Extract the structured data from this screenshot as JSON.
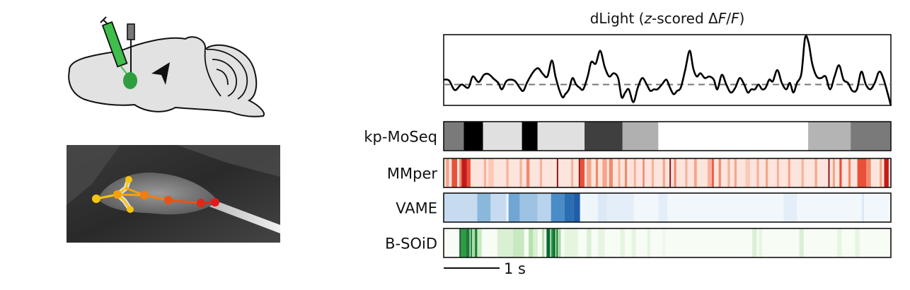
{
  "panel_title_prefix": "dLight (",
  "panel_title_z": "z",
  "panel_title_mid": "-scored Δ",
  "panel_title_F1": "F",
  "panel_title_slash": "/",
  "panel_title_F2": "F",
  "panel_title_suffix": ")",
  "scale_bar_label": "1 s",
  "tracks": [
    {
      "label": "kp-MoSeq",
      "palette": "gray",
      "segments": [
        {
          "start": 0.0,
          "end": 0.045,
          "color": "#7a7a7a"
        },
        {
          "start": 0.045,
          "end": 0.088,
          "color": "#000000"
        },
        {
          "start": 0.088,
          "end": 0.175,
          "color": "#e0e0e0"
        },
        {
          "start": 0.175,
          "end": 0.21,
          "color": "#000000"
        },
        {
          "start": 0.21,
          "end": 0.315,
          "color": "#e0e0e0"
        },
        {
          "start": 0.315,
          "end": 0.4,
          "color": "#3f3f3f"
        },
        {
          "start": 0.4,
          "end": 0.48,
          "color": "#b0b0b0"
        },
        {
          "start": 0.48,
          "end": 0.815,
          "color": "#ffffff"
        },
        {
          "start": 0.815,
          "end": 0.91,
          "color": "#b4b4b4"
        },
        {
          "start": 0.91,
          "end": 1.0,
          "color": "#7a7a7a"
        }
      ]
    },
    {
      "label": "MMper",
      "palette": "red",
      "base_color": "#fde4dc",
      "segments": [
        {
          "start": 0.005,
          "end": 0.012,
          "color": "#f4a58c"
        },
        {
          "start": 0.018,
          "end": 0.03,
          "color": "#e8503a"
        },
        {
          "start": 0.035,
          "end": 0.04,
          "color": "#f08a6c"
        },
        {
          "start": 0.04,
          "end": 0.052,
          "color": "#c41a1a"
        },
        {
          "start": 0.052,
          "end": 0.06,
          "color": "#e8503a"
        },
        {
          "start": 0.09,
          "end": 0.095,
          "color": "#f7b29c"
        },
        {
          "start": 0.1,
          "end": 0.112,
          "color": "#fbc9b6"
        },
        {
          "start": 0.14,
          "end": 0.145,
          "color": "#f7b29c"
        },
        {
          "start": 0.17,
          "end": 0.175,
          "color": "#f7b29c"
        },
        {
          "start": 0.185,
          "end": 0.192,
          "color": "#f08a6c"
        },
        {
          "start": 0.215,
          "end": 0.22,
          "color": "#f7b29c"
        },
        {
          "start": 0.253,
          "end": 0.256,
          "color": "#8b0f0f"
        },
        {
          "start": 0.285,
          "end": 0.29,
          "color": "#f7b29c"
        },
        {
          "start": 0.302,
          "end": 0.305,
          "color": "#8b0f0f"
        },
        {
          "start": 0.305,
          "end": 0.315,
          "color": "#e8503a"
        },
        {
          "start": 0.32,
          "end": 0.33,
          "color": "#f4a58c"
        },
        {
          "start": 0.34,
          "end": 0.345,
          "color": "#f08a6c"
        },
        {
          "start": 0.355,
          "end": 0.365,
          "color": "#f4a58c"
        },
        {
          "start": 0.37,
          "end": 0.378,
          "color": "#f08a6c"
        },
        {
          "start": 0.39,
          "end": 0.395,
          "color": "#f7b29c"
        },
        {
          "start": 0.405,
          "end": 0.41,
          "color": "#f08a6c"
        },
        {
          "start": 0.425,
          "end": 0.43,
          "color": "#f7b29c"
        },
        {
          "start": 0.445,
          "end": 0.449,
          "color": "#f08a6c"
        },
        {
          "start": 0.465,
          "end": 0.47,
          "color": "#f7b29c"
        },
        {
          "start": 0.49,
          "end": 0.495,
          "color": "#f4a58c"
        },
        {
          "start": 0.505,
          "end": 0.508,
          "color": "#8b0f0f"
        },
        {
          "start": 0.515,
          "end": 0.52,
          "color": "#f08a6c"
        },
        {
          "start": 0.54,
          "end": 0.545,
          "color": "#f7b29c"
        },
        {
          "start": 0.56,
          "end": 0.566,
          "color": "#f4a58c"
        },
        {
          "start": 0.59,
          "end": 0.6,
          "color": "#f7b29c"
        },
        {
          "start": 0.615,
          "end": 0.62,
          "color": "#f08a6c"
        },
        {
          "start": 0.635,
          "end": 0.64,
          "color": "#f7b29c"
        },
        {
          "start": 0.6,
          "end": 0.604,
          "color": "#e8503a"
        },
        {
          "start": 0.65,
          "end": 0.655,
          "color": "#f4a58c"
        },
        {
          "start": 0.675,
          "end": 0.685,
          "color": "#fbc9b6"
        },
        {
          "start": 0.7,
          "end": 0.705,
          "color": "#f7b29c"
        },
        {
          "start": 0.72,
          "end": 0.725,
          "color": "#f4a58c"
        },
        {
          "start": 0.745,
          "end": 0.75,
          "color": "#f7b29c"
        },
        {
          "start": 0.77,
          "end": 0.775,
          "color": "#f4a58c"
        },
        {
          "start": 0.8,
          "end": 0.805,
          "color": "#f7b29c"
        },
        {
          "start": 0.83,
          "end": 0.835,
          "color": "#f4a58c"
        },
        {
          "start": 0.86,
          "end": 0.863,
          "color": "#8b0f0f"
        },
        {
          "start": 0.87,
          "end": 0.875,
          "color": "#f4a58c"
        },
        {
          "start": 0.885,
          "end": 0.89,
          "color": "#e8503a"
        },
        {
          "start": 0.905,
          "end": 0.91,
          "color": "#f08a6c"
        },
        {
          "start": 0.925,
          "end": 0.945,
          "color": "#e8503a"
        },
        {
          "start": 0.945,
          "end": 0.955,
          "color": "#f08a6c"
        },
        {
          "start": 0.975,
          "end": 0.98,
          "color": "#f4a58c"
        },
        {
          "start": 0.985,
          "end": 0.995,
          "color": "#c41a1a"
        }
      ]
    },
    {
      "label": "VAME",
      "palette": "blue",
      "base_color": "#f2f7fc",
      "segments": [
        {
          "start": 0.0,
          "end": 0.075,
          "color": "#c6dbef"
        },
        {
          "start": 0.075,
          "end": 0.105,
          "color": "#8ab8dd"
        },
        {
          "start": 0.105,
          "end": 0.14,
          "color": "#c6dbef"
        },
        {
          "start": 0.14,
          "end": 0.145,
          "color": "#eef5fb"
        },
        {
          "start": 0.145,
          "end": 0.17,
          "color": "#6fa6d4"
        },
        {
          "start": 0.17,
          "end": 0.21,
          "color": "#9cc3e3"
        },
        {
          "start": 0.21,
          "end": 0.24,
          "color": "#b8d3ec"
        },
        {
          "start": 0.24,
          "end": 0.27,
          "color": "#4a8cc8"
        },
        {
          "start": 0.27,
          "end": 0.29,
          "color": "#2a6fb4"
        },
        {
          "start": 0.29,
          "end": 0.305,
          "color": "#1f5ea8"
        },
        {
          "start": 0.305,
          "end": 0.345,
          "color": "#eef5fb"
        },
        {
          "start": 0.345,
          "end": 0.365,
          "color": "#dbe8f5"
        },
        {
          "start": 0.365,
          "end": 0.425,
          "color": "#e4eef8"
        },
        {
          "start": 0.48,
          "end": 0.5,
          "color": "#e4eef8"
        },
        {
          "start": 0.76,
          "end": 0.79,
          "color": "#e4eef8"
        },
        {
          "start": 0.935,
          "end": 0.94,
          "color": "#dbe8f5"
        }
      ]
    },
    {
      "label": "B-SOiD",
      "palette": "green",
      "base_color": "#f7fcf5",
      "segments": [
        {
          "start": 0.035,
          "end": 0.04,
          "color": "#1b7a34"
        },
        {
          "start": 0.04,
          "end": 0.05,
          "color": "#2e9a48"
        },
        {
          "start": 0.05,
          "end": 0.058,
          "color": "#1b7a34"
        },
        {
          "start": 0.06,
          "end": 0.063,
          "color": "#006d2c"
        },
        {
          "start": 0.063,
          "end": 0.07,
          "color": "#a9dba1"
        },
        {
          "start": 0.07,
          "end": 0.075,
          "color": "#1b7a34"
        },
        {
          "start": 0.075,
          "end": 0.085,
          "color": "#c7e9c0"
        },
        {
          "start": 0.12,
          "end": 0.155,
          "color": "#d9f0d3"
        },
        {
          "start": 0.155,
          "end": 0.18,
          "color": "#c7e9c0"
        },
        {
          "start": 0.19,
          "end": 0.2,
          "color": "#b7e1ae"
        },
        {
          "start": 0.2,
          "end": 0.21,
          "color": "#d9f0d3"
        },
        {
          "start": 0.22,
          "end": 0.225,
          "color": "#b7e1ae"
        },
        {
          "start": 0.23,
          "end": 0.238,
          "color": "#006d2c"
        },
        {
          "start": 0.24,
          "end": 0.243,
          "color": "#2e9a48"
        },
        {
          "start": 0.243,
          "end": 0.25,
          "color": "#1b7a34"
        },
        {
          "start": 0.252,
          "end": 0.255,
          "color": "#006d2c"
        },
        {
          "start": 0.255,
          "end": 0.262,
          "color": "#a9dba1"
        },
        {
          "start": 0.27,
          "end": 0.3,
          "color": "#e5f5e0"
        },
        {
          "start": 0.32,
          "end": 0.33,
          "color": "#d9f0d3"
        },
        {
          "start": 0.345,
          "end": 0.36,
          "color": "#e5f5e0"
        },
        {
          "start": 0.395,
          "end": 0.405,
          "color": "#e5f5e0"
        },
        {
          "start": 0.42,
          "end": 0.43,
          "color": "#e5f5e0"
        },
        {
          "start": 0.455,
          "end": 0.462,
          "color": "#e5f5e0"
        },
        {
          "start": 0.49,
          "end": 0.495,
          "color": "#eef8ea"
        },
        {
          "start": 0.69,
          "end": 0.7,
          "color": "#d9f0d3"
        },
        {
          "start": 0.705,
          "end": 0.712,
          "color": "#e5f5e0"
        },
        {
          "start": 0.795,
          "end": 0.805,
          "color": "#d9f0d3"
        },
        {
          "start": 0.88,
          "end": 0.89,
          "color": "#e5f5e0"
        },
        {
          "start": 0.92,
          "end": 0.93,
          "color": "#e5f5e0"
        }
      ]
    }
  ],
  "signal_trace": {
    "baseline": 0,
    "ylim": [
      -1.3,
      3.1
    ],
    "x": [
      0.0,
      0.012,
      0.025,
      0.04,
      0.055,
      0.065,
      0.078,
      0.09,
      0.1,
      0.112,
      0.122,
      0.13,
      0.14,
      0.15,
      0.16,
      0.17,
      0.178,
      0.186,
      0.196,
      0.204,
      0.212,
      0.222,
      0.232,
      0.242,
      0.25,
      0.258,
      0.266,
      0.272,
      0.28,
      0.288,
      0.296,
      0.304,
      0.312,
      0.322,
      0.33,
      0.34,
      0.35,
      0.36,
      0.37,
      0.38,
      0.39,
      0.398,
      0.406,
      0.414,
      0.424,
      0.434,
      0.444,
      0.454,
      0.462,
      0.47,
      0.478,
      0.488,
      0.498,
      0.506,
      0.514,
      0.522,
      0.53,
      0.54,
      0.55,
      0.558,
      0.566,
      0.574,
      0.584,
      0.594,
      0.604,
      0.612,
      0.622,
      0.632,
      0.642,
      0.652,
      0.662,
      0.672,
      0.68,
      0.688,
      0.696,
      0.704,
      0.712,
      0.72,
      0.728,
      0.736,
      0.746,
      0.756,
      0.766,
      0.774,
      0.782,
      0.79,
      0.8,
      0.808,
      0.816,
      0.824,
      0.834,
      0.844,
      0.854,
      0.864,
      0.874,
      0.884,
      0.894,
      0.904,
      0.914,
      0.924,
      0.934,
      0.944,
      0.954,
      0.964,
      0.974,
      0.984,
      1.0
    ],
    "y": [
      0.3,
      0.25,
      -0.35,
      0.0,
      -0.2,
      0.5,
      0.15,
      0.6,
      0.65,
      0.35,
      0.1,
      -0.3,
      0.2,
      0.3,
      0.2,
      -0.2,
      -0.4,
      0.1,
      0.6,
      0.9,
      1.0,
      0.65,
      0.5,
      1.5,
      0.5,
      -0.3,
      -0.8,
      -0.6,
      -0.3,
      0.4,
      0.0,
      -0.2,
      -0.3,
      0.5,
      1.4,
      1.3,
      2.1,
      1.1,
      0.5,
      0.7,
      0.4,
      -0.8,
      -0.5,
      -0.3,
      -1.1,
      -0.2,
      0.4,
      0.0,
      -0.4,
      -0.3,
      -0.3,
      0.0,
      0.3,
      -0.2,
      -0.6,
      -0.4,
      -0.2,
      0.9,
      2.1,
      1.0,
      0.5,
      0.7,
      0.4,
      0.5,
      0.3,
      -0.3,
      0.6,
      0.0,
      -0.5,
      -0.2,
      0.4,
      0.0,
      -0.5,
      -0.3,
      -0.3,
      0.0,
      -0.3,
      -0.2,
      0.3,
      0.2,
      0.9,
      0.1,
      -0.3,
      0.1,
      -0.5,
      0.1,
      0.7,
      2.9,
      2.6,
      1.3,
      0.5,
      0.4,
      0.5,
      -0.3,
      0.5,
      1.2,
      0.3,
      0.1,
      -0.4,
      -0.3,
      0.8,
      0.0,
      -0.3,
      0.1,
      0.8,
      0.3,
      -1.3
    ]
  },
  "skeleton_colors": [
    "#f6c40f",
    "#f5a10c",
    "#f07d10",
    "#ea5214",
    "#e02818",
    "#e31a1c"
  ],
  "injection_color": "#2e9e3f"
}
